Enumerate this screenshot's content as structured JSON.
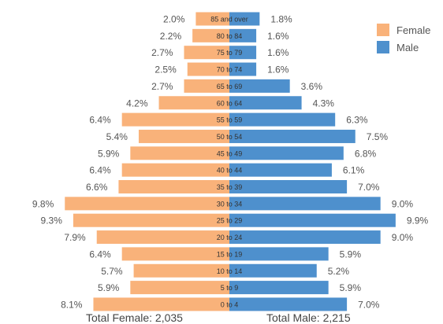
{
  "chart_data": {
    "type": "bar",
    "orientation": "horizontal-diverging",
    "categories": [
      "85 and over",
      "80 to 84",
      "75 to 79",
      "70 to 74",
      "65 to 69",
      "60 to 64",
      "55 to 59",
      "50 to 54",
      "45 to 49",
      "40 to 44",
      "35 to 39",
      "30 to 34",
      "25 to 29",
      "20 to 24",
      "15 to 19",
      "10 to 14",
      "5 to 9",
      "0 to 4"
    ],
    "series": [
      {
        "name": "Female",
        "color": "#F9B27A",
        "values": [
          2.0,
          2.2,
          2.7,
          2.5,
          2.7,
          4.2,
          6.4,
          5.4,
          5.9,
          6.4,
          6.6,
          9.8,
          9.3,
          7.9,
          6.4,
          5.7,
          5.9,
          8.1
        ],
        "labels": [
          "2.0%",
          "2.2%",
          "2.7%",
          "2.5%",
          "2.7%",
          "4.2%",
          "6.4%",
          "5.4%",
          "5.9%",
          "6.4%",
          "6.6%",
          "9.8%",
          "9.3%",
          "7.9%",
          "6.4%",
          "5.7%",
          "5.9%",
          "8.1%"
        ]
      },
      {
        "name": "Male",
        "color": "#4E90CD",
        "values": [
          1.8,
          1.6,
          1.6,
          1.6,
          3.6,
          4.3,
          6.3,
          7.5,
          6.8,
          6.1,
          7.0,
          9.0,
          9.9,
          9.0,
          5.9,
          5.2,
          5.9,
          7.0
        ],
        "labels": [
          "1.8%",
          "1.6%",
          "1.6%",
          "1.6%",
          "3.6%",
          "4.3%",
          "6.3%",
          "7.5%",
          "6.8%",
          "6.1%",
          "7.0%",
          "9.0%",
          "9.9%",
          "9.0%",
          "5.9%",
          "5.2%",
          "5.9%",
          "7.0%"
        ]
      }
    ],
    "totals": {
      "female": "Total Female: 2,035",
      "male": "Total Male: 2,215"
    },
    "legend": "top-right",
    "grid": false,
    "xlim": [
      0,
      10
    ]
  }
}
